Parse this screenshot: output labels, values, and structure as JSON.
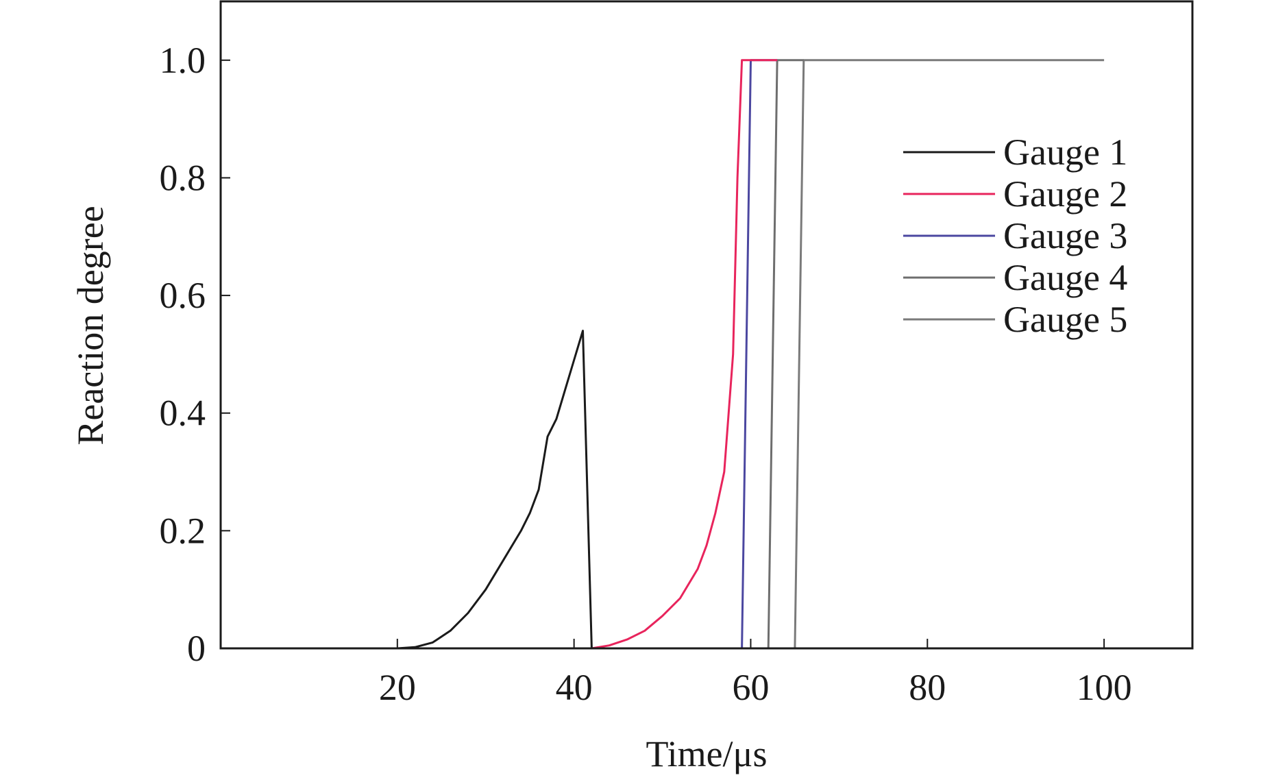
{
  "chart_data": {
    "type": "line",
    "title": "",
    "xlabel": "Time/μs",
    "ylabel": "Reaction degree",
    "xlim": [
      0,
      110
    ],
    "ylim": [
      0,
      1.1
    ],
    "x_ticks": [
      20,
      40,
      60,
      80,
      100
    ],
    "x_tick_labels": [
      "20",
      "40",
      "60",
      "80",
      "100"
    ],
    "y_ticks": [
      0,
      0.2,
      0.4,
      0.6,
      0.8,
      1.0
    ],
    "y_tick_labels": [
      "0",
      "0.2",
      "0.4",
      "0.6",
      "0.8",
      "1.0"
    ],
    "grid": false,
    "legend_position": "right",
    "series": [
      {
        "name": "Gauge 1",
        "color": "#1a1a1a",
        "points": [
          [
            0,
            0
          ],
          [
            20,
            0
          ],
          [
            22,
            0.002
          ],
          [
            24,
            0.01
          ],
          [
            26,
            0.03
          ],
          [
            28,
            0.06
          ],
          [
            30,
            0.1
          ],
          [
            32,
            0.15
          ],
          [
            34,
            0.2
          ],
          [
            35,
            0.23
          ],
          [
            36,
            0.27
          ],
          [
            37,
            0.36
          ],
          [
            38,
            0.39
          ],
          [
            39,
            0.44
          ],
          [
            40,
            0.49
          ],
          [
            41,
            0.54
          ],
          [
            42,
            0
          ],
          [
            70,
            0
          ],
          [
            110,
            0
          ]
        ]
      },
      {
        "name": "Gauge 2",
        "color": "#e8245c",
        "points": [
          [
            42,
            0
          ],
          [
            44,
            0.005
          ],
          [
            46,
            0.015
          ],
          [
            48,
            0.03
          ],
          [
            50,
            0.055
          ],
          [
            52,
            0.085
          ],
          [
            54,
            0.135
          ],
          [
            55,
            0.175
          ],
          [
            56,
            0.23
          ],
          [
            57,
            0.3
          ],
          [
            58,
            0.5
          ],
          [
            58.5,
            0.8
          ],
          [
            59,
            1.0
          ],
          [
            63,
            1.0
          ]
        ]
      },
      {
        "name": "Gauge 3",
        "color": "#4b47a0",
        "points": [
          [
            42,
            0
          ],
          [
            59,
            0
          ],
          [
            60,
            1.0
          ],
          [
            63,
            1.0
          ]
        ]
      },
      {
        "name": "Gauge 4",
        "color": "#6e6e6e",
        "points": [
          [
            60,
            0
          ],
          [
            62,
            0
          ],
          [
            63,
            1.0
          ],
          [
            66,
            1.0
          ]
        ]
      },
      {
        "name": "Gauge 5",
        "color": "#7a7a7a",
        "points": [
          [
            63,
            0
          ],
          [
            65,
            0
          ],
          [
            66,
            1.0
          ],
          [
            100,
            1.0
          ]
        ]
      }
    ]
  }
}
